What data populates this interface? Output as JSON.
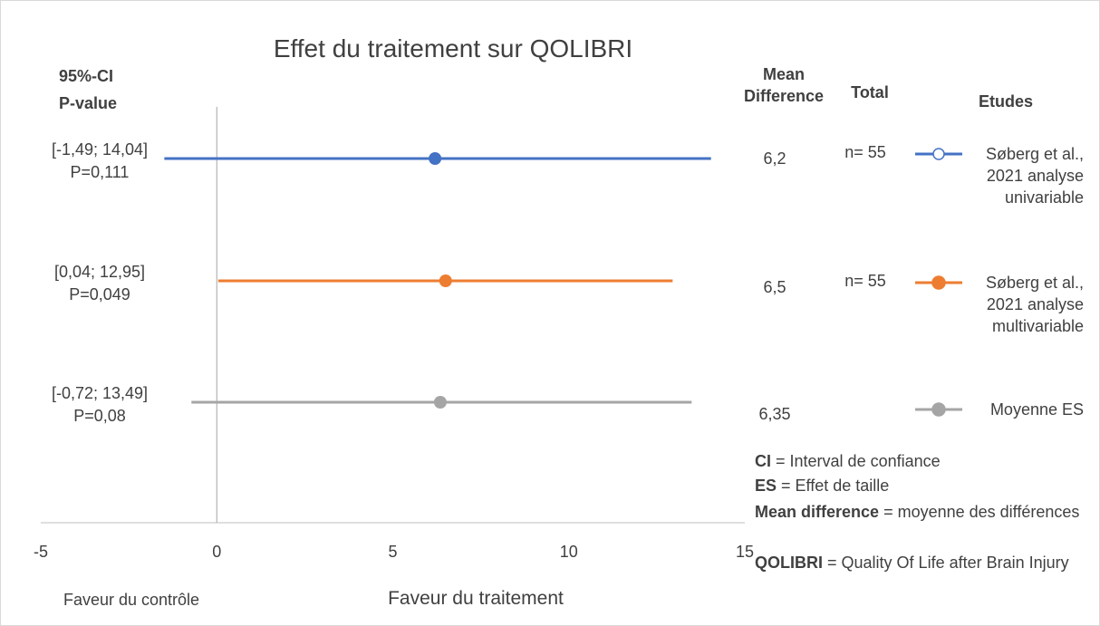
{
  "chart_data": {
    "type": "forest",
    "title": "Effet du traitement sur QOLIBRI",
    "headers": {
      "ci": "95%-CI",
      "p": "P-value",
      "mean": "Mean Difference",
      "total": "Total",
      "studies": "Etudes"
    },
    "xlim": [
      -5,
      15
    ],
    "xticks": [
      -5,
      0,
      5,
      10,
      15
    ],
    "left_label": "Faveur du contrôle",
    "right_label": "Faveur du traitement",
    "series": [
      {
        "name": "Søberg et al., 2021 analyse univariable",
        "color": "#4472c4",
        "legend_hollow": true,
        "values": [
          6.2
        ],
        "value_labels": [
          "6,2"
        ],
        "ci_low": [
          -1.49
        ],
        "ci_high": [
          14.04
        ],
        "ci_label": "[-1,49; 14,04]",
        "p_label": "P=0,111",
        "total": "n= 55"
      },
      {
        "name": "Søberg et al., 2021 analyse multivariable",
        "color": "#ed7d31",
        "values": [
          6.5
        ],
        "value_labels": [
          "6,5"
        ],
        "ci_low": [
          0.04
        ],
        "ci_high": [
          12.95
        ],
        "ci_label": "[0,04; 12,95]",
        "p_label": "P=0,049",
        "total": "n= 55"
      },
      {
        "name": "Moyenne ES",
        "color": "#a5a5a5",
        "values": [
          6.35
        ],
        "value_labels": [
          "6,35"
        ],
        "ci_low": [
          -0.72
        ],
        "ci_high": [
          13.49
        ],
        "ci_label": "[-0,72; 13,49]",
        "p_label": "P=0,08"
      }
    ],
    "notes": [
      {
        "term": "CI",
        "text": "= Interval de confiance"
      },
      {
        "term": "ES",
        "text": "=  Effet de taille"
      },
      {
        "term": "Mean difference",
        "text": "= moyenne des différences"
      },
      {
        "term": "QOLIBRI",
        "text": "= Quality Of Life after Brain Injury"
      }
    ]
  }
}
